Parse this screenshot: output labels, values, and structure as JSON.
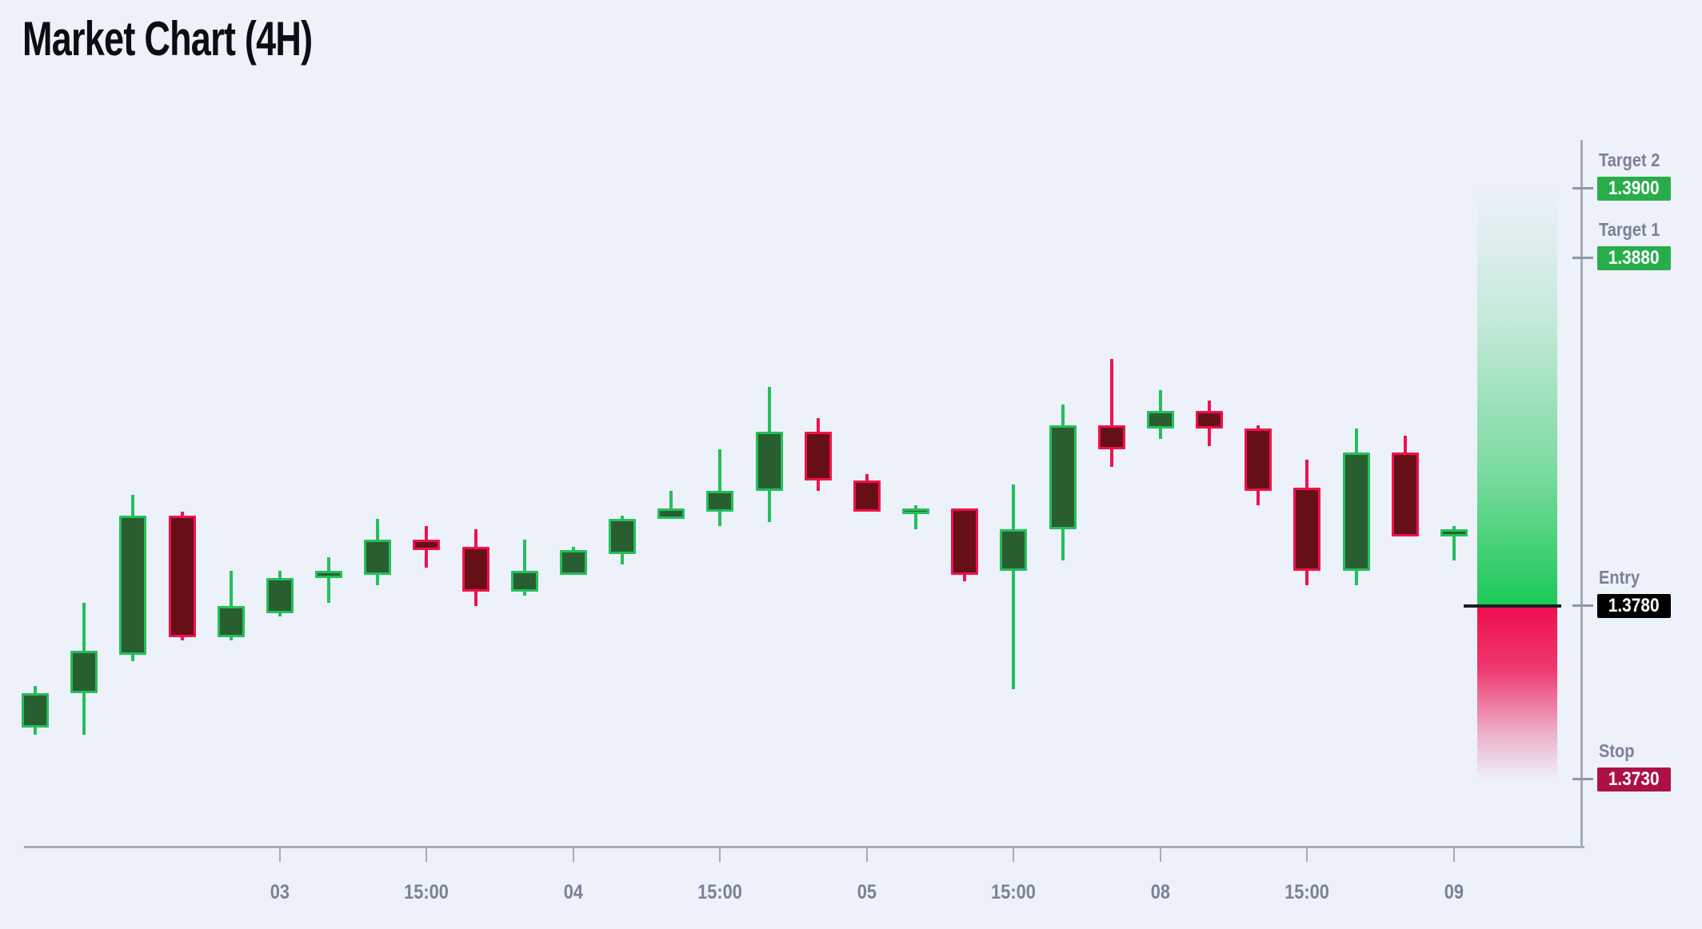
{
  "title": "Market Chart (4H)",
  "colors": {
    "background": "#edf1f9",
    "title_text": "#0c0d11",
    "axis_line": "#a6abb8",
    "tick_label": "#7b8096",
    "level_label": "#7b8096",
    "badge_text": "#ffffff",
    "bull_body_fill": "#295e31",
    "bull_outline": "#24bf5b",
    "bear_body_fill": "#670f16",
    "bear_outline": "#f1114f",
    "reward_zone_green": "#1cc956",
    "risk_zone_red": "#ef0d4f",
    "entry_line": "#1c2026",
    "badge_green": "#28ad4b",
    "badge_red": "#ad1144",
    "badge_black": "#000000"
  },
  "chart_data": {
    "type": "candlestick",
    "title": "Market Chart (4H)",
    "timeframe": "4H",
    "grid": "off",
    "legend": "none",
    "price_range": {
      "min": 1.3711,
      "max": 1.3914
    },
    "x_axis": {
      "tick_labels": [
        {
          "candle_index": 5,
          "label": "03"
        },
        {
          "candle_index": 8,
          "label": "15:00"
        },
        {
          "candle_index": 11,
          "label": "04"
        },
        {
          "candle_index": 14,
          "label": "15:00"
        },
        {
          "candle_index": 17,
          "label": "05"
        },
        {
          "candle_index": 20,
          "label": "15:00"
        },
        {
          "candle_index": 23,
          "label": "08"
        },
        {
          "candle_index": 26,
          "label": "15:00"
        },
        {
          "candle_index": 29,
          "label": "09"
        }
      ]
    },
    "candles": [
      {
        "o": 1.3745,
        "h": 1.3757,
        "l": 1.3743,
        "c": 1.3755
      },
      {
        "o": 1.3755,
        "h": 1.3781,
        "l": 1.3743,
        "c": 1.3767
      },
      {
        "o": 1.3766,
        "h": 1.3812,
        "l": 1.3764,
        "c": 1.3806
      },
      {
        "o": 1.3806,
        "h": 1.3807,
        "l": 1.377,
        "c": 1.3771
      },
      {
        "o": 1.3771,
        "h": 1.379,
        "l": 1.377,
        "c": 1.378
      },
      {
        "o": 1.3778,
        "h": 1.379,
        "l": 1.3777,
        "c": 1.3788
      },
      {
        "o": 1.3788,
        "h": 1.3794,
        "l": 1.3781,
        "c": 1.379
      },
      {
        "o": 1.3789,
        "h": 1.3805,
        "l": 1.3786,
        "c": 1.3799
      },
      {
        "o": 1.3799,
        "h": 1.3803,
        "l": 1.3791,
        "c": 1.3796
      },
      {
        "o": 1.3797,
        "h": 1.3802,
        "l": 1.378,
        "c": 1.3784
      },
      {
        "o": 1.3784,
        "h": 1.3799,
        "l": 1.3783,
        "c": 1.379
      },
      {
        "o": 1.3789,
        "h": 1.3797,
        "l": 1.3789,
        "c": 1.3796
      },
      {
        "o": 1.3795,
        "h": 1.3806,
        "l": 1.3792,
        "c": 1.3805
      },
      {
        "o": 1.3805,
        "h": 1.3813,
        "l": 1.3805,
        "c": 1.3808
      },
      {
        "o": 1.3807,
        "h": 1.3825,
        "l": 1.3803,
        "c": 1.3813
      },
      {
        "o": 1.3813,
        "h": 1.3843,
        "l": 1.3804,
        "c": 1.383
      },
      {
        "o": 1.383,
        "h": 1.3834,
        "l": 1.3813,
        "c": 1.3816
      },
      {
        "o": 1.3816,
        "h": 1.3818,
        "l": 1.3807,
        "c": 1.3807
      },
      {
        "o": 1.3807,
        "h": 1.3809,
        "l": 1.3802,
        "c": 1.3808
      },
      {
        "o": 1.3808,
        "h": 1.3808,
        "l": 1.3787,
        "c": 1.3789
      },
      {
        "o": 1.379,
        "h": 1.3815,
        "l": 1.3756,
        "c": 1.3802
      },
      {
        "o": 1.3802,
        "h": 1.3838,
        "l": 1.3793,
        "c": 1.3832
      },
      {
        "o": 1.3832,
        "h": 1.3851,
        "l": 1.382,
        "c": 1.3825
      },
      {
        "o": 1.3831,
        "h": 1.3842,
        "l": 1.3828,
        "c": 1.3836
      },
      {
        "o": 1.3836,
        "h": 1.3839,
        "l": 1.3826,
        "c": 1.3831
      },
      {
        "o": 1.3831,
        "h": 1.3832,
        "l": 1.3809,
        "c": 1.3813
      },
      {
        "o": 1.3814,
        "h": 1.3822,
        "l": 1.3786,
        "c": 1.379
      },
      {
        "o": 1.379,
        "h": 1.3831,
        "l": 1.3786,
        "c": 1.3824
      },
      {
        "o": 1.3824,
        "h": 1.3829,
        "l": 1.38,
        "c": 1.38
      },
      {
        "o": 1.38,
        "h": 1.3803,
        "l": 1.3793,
        "c": 1.3802
      }
    ],
    "levels": [
      {
        "id": "target-2",
        "label": "Target 2",
        "price": 1.39,
        "value": "1.3900",
        "badge_color": "#28ad4b"
      },
      {
        "id": "target-1",
        "label": "Target 1",
        "price": 1.388,
        "value": "1.3880",
        "badge_color": "#28ad4b"
      },
      {
        "id": "entry",
        "label": "Entry",
        "price": 1.378,
        "value": "1.3780",
        "badge_color": "#000000"
      },
      {
        "id": "stop",
        "label": "Stop",
        "price": 1.373,
        "value": "1.3730",
        "badge_color": "#ad1144"
      }
    ],
    "zones": [
      {
        "id": "reward",
        "from_price": 1.39,
        "to_price": 1.378,
        "color": "#1cc956",
        "fade": "in-down"
      },
      {
        "id": "risk",
        "from_price": 1.378,
        "to_price": 1.373,
        "color": "#ef0d4f",
        "fade": "out-down"
      }
    ]
  }
}
